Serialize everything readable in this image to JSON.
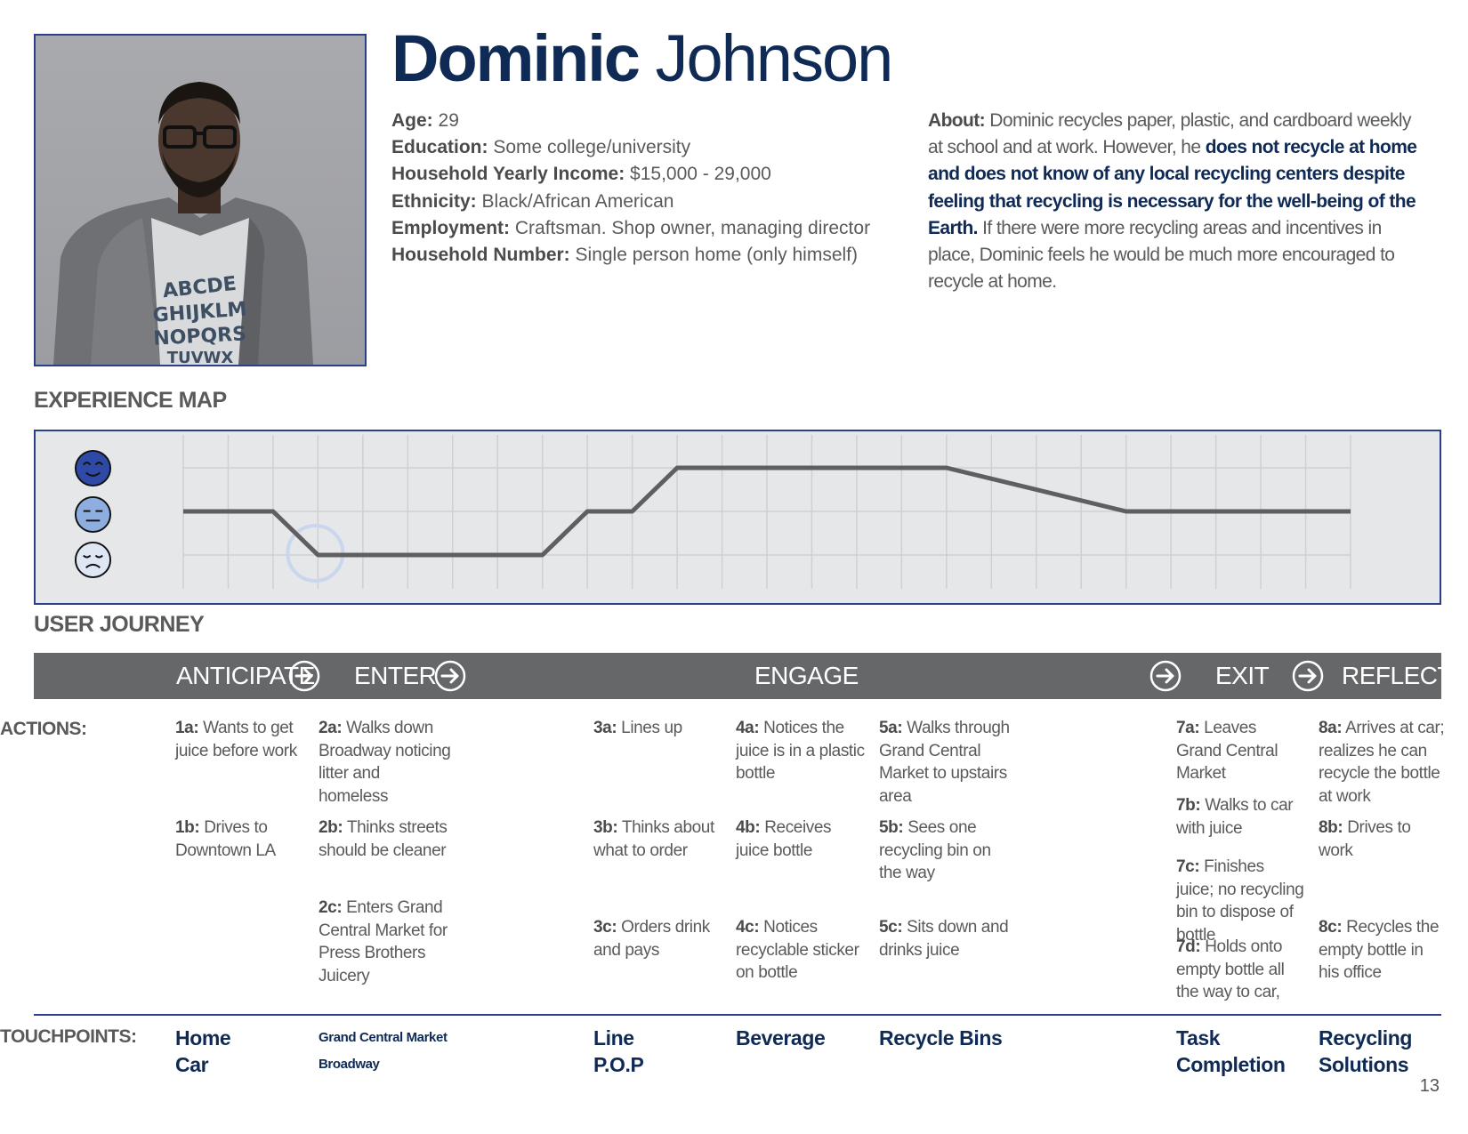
{
  "persona": {
    "first_name": "Dominic",
    "last_name": "Johnson",
    "facts": [
      {
        "label": "Age:",
        "value": "29"
      },
      {
        "label": "Education:",
        "value": "Some college/university"
      },
      {
        "label": "Household Yearly Income:",
        "value": "$15,000 - 29,000"
      },
      {
        "label": "Ethnicity:",
        "value": "Black/African American"
      },
      {
        "label": "Employment:",
        "value": "Craftsman. Shop owner, managing director"
      },
      {
        "label": "Household Number:",
        "value": "Single person home (only himself)"
      }
    ],
    "about": {
      "label": "About:",
      "text_1": "Dominic recycles paper, plastic, and cardboard weekly at school and at work. However, he",
      "emphasis": "does not recycle at home and does not know of any local recycling centers despite feeling that recycling is necessary for the well-being of the Earth.",
      "text_2": "If there were more recycling areas and incentives in place, Dominic feels he would be much more encouraged to recycle at home."
    },
    "photo_icon": "portrait-photo"
  },
  "experience_map": {
    "title": "EXPERIENCE MAP",
    "faces": [
      "happy-face-icon",
      "neutral-face-icon",
      "sad-face-icon"
    ],
    "colors": {
      "happy": "#2e4aa6",
      "neutral": "#8eaee0",
      "sad": "#dfe7f4",
      "line": "#5f5f61",
      "grid": "#cfd0d3",
      "highlight": "#c9d6ee"
    },
    "levels": [
      "happy",
      "neutral",
      "sad"
    ],
    "curve": [
      {
        "step": 0,
        "level": 1
      },
      {
        "step": 2,
        "level": 1
      },
      {
        "step": 3,
        "level": 0
      },
      {
        "step": 8,
        "level": 0
      },
      {
        "step": 9,
        "level": 1
      },
      {
        "step": 10,
        "level": 1
      },
      {
        "step": 11,
        "level": 2
      },
      {
        "step": 17,
        "level": 2
      },
      {
        "step": 21,
        "level": 1
      },
      {
        "step": 26,
        "level": 1
      }
    ],
    "highlight_step": 3
  },
  "user_journey": {
    "title": "USER JOURNEY",
    "stages": [
      "ANTICIPATE",
      "ENTER",
      "ENGAGE",
      "EXIT",
      "REFLECT"
    ],
    "arrow_icon": "circle-arrow-right-icon"
  },
  "actions": {
    "label": "ACTIONS:",
    "items": [
      {
        "id": "1a:",
        "text": "Wants to get juice before work"
      },
      {
        "id": "1b:",
        "text": "Drives to Downtown LA"
      },
      {
        "id": "2a:",
        "text": "Walks down Broadway noticing litter and homeless"
      },
      {
        "id": "2b:",
        "text": "Thinks streets should be cleaner"
      },
      {
        "id": "2c:",
        "text": "Enters Grand Central Market for Press Brothers Juicery"
      },
      {
        "id": "3a:",
        "text": "Lines up"
      },
      {
        "id": "3b:",
        "text": "Thinks about what to order"
      },
      {
        "id": "3c:",
        "text": "Orders drink and pays"
      },
      {
        "id": "4a:",
        "text": "Notices the juice is in a plastic bottle"
      },
      {
        "id": "4b:",
        "text": "Receives juice bottle"
      },
      {
        "id": "4c:",
        "text": "Notices recyclable sticker on bottle"
      },
      {
        "id": "5a:",
        "text": "Walks through Grand Central Market to upstairs area"
      },
      {
        "id": "5b:",
        "text": "Sees one recycling bin on the way"
      },
      {
        "id": "5c:",
        "text": "Sits down and drinks juice"
      },
      {
        "id": "7a:",
        "text": "Leaves Grand Central Market"
      },
      {
        "id": "7b:",
        "text": "Walks to car with juice"
      },
      {
        "id": "7c:",
        "text": "Finishes juice; no recycling bin to dispose of bottle"
      },
      {
        "id": "7d:",
        "text": "Holds onto empty bottle all the way to car,"
      },
      {
        "id": "8a:",
        "text": "Arrives at car; realizes he can recycle the bottle at work"
      },
      {
        "id": "8b:",
        "text": "Drives to work"
      },
      {
        "id": "8c:",
        "text": "Recycles the empty bottle in his office"
      }
    ]
  },
  "touchpoints": {
    "label": "TOUCHPOINTS:",
    "groups": [
      [
        "Home",
        "Car"
      ],
      [
        "Grand Central Market",
        "Broadway"
      ],
      [
        "Line",
        "P.O.P"
      ],
      [
        "Beverage"
      ],
      [
        "Recycle Bins"
      ],
      [
        "Task",
        "Completion"
      ],
      [
        "Recycling",
        "Solutions"
      ]
    ]
  },
  "page_number": "13"
}
